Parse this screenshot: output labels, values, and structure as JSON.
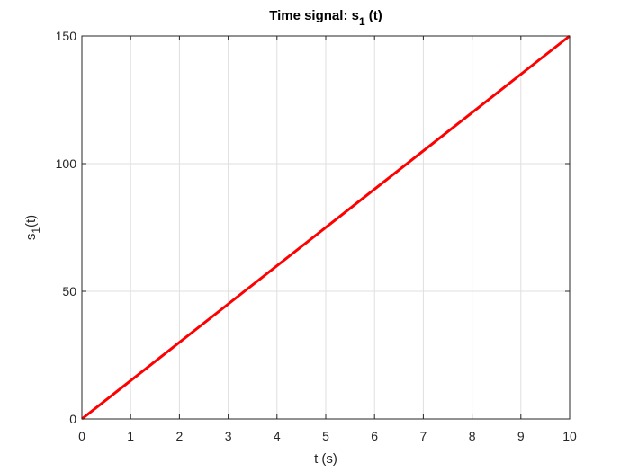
{
  "chart_data": {
    "type": "line",
    "title": {
      "main": "Time signal: s",
      "sub": "1",
      "tail": " (t)"
    },
    "xlabel": "t (s)",
    "ylabel": {
      "main": "s",
      "sub": "1",
      "tail": "(t)"
    },
    "xlim": [
      0,
      10
    ],
    "ylim": [
      0,
      150
    ],
    "xticks": [
      0,
      1,
      2,
      3,
      4,
      5,
      6,
      7,
      8,
      9,
      10
    ],
    "yticks": [
      0,
      50,
      100,
      150
    ],
    "grid": true,
    "series": [
      {
        "x": [
          0,
          10
        ],
        "y": [
          0,
          150
        ],
        "color": "#ff0000"
      }
    ]
  }
}
